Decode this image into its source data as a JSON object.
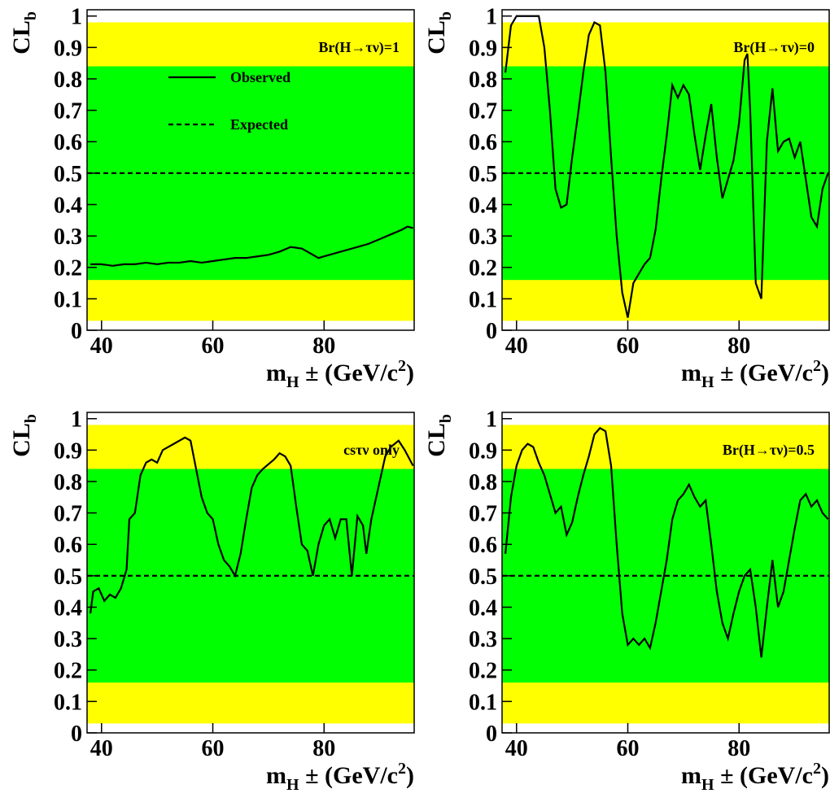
{
  "chart_data": [
    {
      "type": "line",
      "annotation": "Br(H→τν)=1",
      "ylabel": [
        "CL",
        "b"
      ],
      "xlabel": [
        "m",
        "H",
        " ± (GeV/c",
        "2",
        ")"
      ],
      "xlim": [
        37.4,
        96.2
      ],
      "ylim": [
        0,
        1.02
      ],
      "xticks": [
        40,
        60,
        80
      ],
      "yticks": [
        0,
        0.1,
        0.2,
        0.3,
        0.4,
        0.5,
        0.6,
        0.7,
        0.8,
        0.9,
        1
      ],
      "bands": [
        {
          "color": "#ffff00",
          "range": [
            0.03,
            0.98
          ]
        },
        {
          "color": "#00ff00",
          "range": [
            0.16,
            0.84
          ]
        }
      ],
      "legend": "upper left",
      "series": [
        {
          "name": "Observed",
          "color": "#000000",
          "dash": false,
          "x": [
            38,
            40,
            42,
            44,
            46,
            48,
            50,
            52,
            54,
            56,
            58,
            60,
            62,
            64,
            66,
            68,
            70,
            72,
            74,
            76,
            78,
            79,
            80,
            82,
            84,
            86,
            88,
            90,
            92,
            94,
            95,
            96
          ],
          "values": [
            0.21,
            0.21,
            0.205,
            0.21,
            0.21,
            0.215,
            0.21,
            0.215,
            0.215,
            0.22,
            0.215,
            0.22,
            0.225,
            0.23,
            0.23,
            0.235,
            0.24,
            0.25,
            0.265,
            0.26,
            0.24,
            0.23,
            0.235,
            0.245,
            0.255,
            0.265,
            0.275,
            0.29,
            0.305,
            0.32,
            0.33,
            0.325
          ]
        },
        {
          "name": "Expected",
          "color": "#000000",
          "dash": true,
          "x": [
            37.4,
            96.2
          ],
          "values": [
            0.5,
            0.5
          ]
        }
      ]
    },
    {
      "type": "line",
      "annotation": "Br(H→τν)=0",
      "ylabel": [
        "CL",
        "b"
      ],
      "xlabel": [
        "m",
        "H",
        " ± (GeV/c",
        "2",
        ")"
      ],
      "xlim": [
        37.4,
        96.2
      ],
      "ylim": [
        0,
        1.02
      ],
      "xticks": [
        40,
        60,
        80
      ],
      "yticks": [
        0,
        0.1,
        0.2,
        0.3,
        0.4,
        0.5,
        0.6,
        0.7,
        0.8,
        0.9,
        1
      ],
      "bands": [
        {
          "color": "#ffff00",
          "range": [
            0.03,
            0.98
          ]
        },
        {
          "color": "#00ff00",
          "range": [
            0.16,
            0.84
          ]
        }
      ],
      "series": [
        {
          "color": "#000000",
          "dash": false,
          "x": [
            38,
            39,
            40,
            42,
            44,
            45,
            46,
            47,
            48,
            49,
            50,
            51,
            52,
            53,
            54,
            55,
            56,
            57,
            58,
            59,
            60,
            61,
            62,
            63,
            64,
            65,
            66,
            67,
            68,
            69,
            70,
            71,
            72,
            73,
            74,
            75,
            76,
            77,
            78,
            79,
            80,
            81,
            81.5,
            82,
            83,
            84,
            85,
            86,
            87,
            88,
            89,
            90,
            91,
            92,
            93,
            94,
            95,
            96
          ],
          "values": [
            0.82,
            0.97,
            1.0,
            1.0,
            1.0,
            0.9,
            0.7,
            0.45,
            0.39,
            0.4,
            0.55,
            0.68,
            0.82,
            0.94,
            0.98,
            0.97,
            0.82,
            0.55,
            0.3,
            0.12,
            0.04,
            0.15,
            0.18,
            0.21,
            0.23,
            0.32,
            0.48,
            0.62,
            0.78,
            0.74,
            0.78,
            0.75,
            0.62,
            0.51,
            0.62,
            0.72,
            0.55,
            0.42,
            0.48,
            0.54,
            0.66,
            0.86,
            0.88,
            0.7,
            0.15,
            0.1,
            0.6,
            0.77,
            0.57,
            0.6,
            0.61,
            0.55,
            0.6,
            0.48,
            0.36,
            0.33,
            0.45,
            0.5
          ]
        },
        {
          "color": "#000000",
          "dash": true,
          "x": [
            37.4,
            96.2
          ],
          "values": [
            0.5,
            0.5
          ]
        }
      ]
    },
    {
      "type": "line",
      "annotation": "csτν only",
      "ylabel": [
        "CL",
        "b"
      ],
      "xlabel": [
        "m",
        "H",
        " ± (GeV/c",
        "2",
        ")"
      ],
      "xlim": [
        37.4,
        96.2
      ],
      "ylim": [
        0,
        1.02
      ],
      "xticks": [
        40,
        60,
        80
      ],
      "yticks": [
        0,
        0.1,
        0.2,
        0.3,
        0.4,
        0.5,
        0.6,
        0.7,
        0.8,
        0.9,
        1
      ],
      "bands": [
        {
          "color": "#ffff00",
          "range": [
            0.03,
            0.98
          ]
        },
        {
          "color": "#00ff00",
          "range": [
            0.16,
            0.84
          ]
        }
      ],
      "series": [
        {
          "color": "#000000",
          "dash": false,
          "x": [
            38,
            38.5,
            39.5,
            40.5,
            41.5,
            42.5,
            43.5,
            44.5,
            45,
            46,
            47,
            48,
            49,
            50,
            51,
            53,
            55,
            56,
            57,
            58,
            59,
            60,
            61,
            62,
            63,
            64,
            65,
            66,
            67,
            68,
            69,
            71,
            72,
            73,
            74,
            75,
            76,
            77,
            78,
            79,
            80,
            81,
            82,
            83,
            84,
            85,
            86,
            87,
            87.6,
            88.5,
            90,
            91,
            92,
            93.4,
            94.5,
            96
          ],
          "values": [
            0.38,
            0.45,
            0.46,
            0.42,
            0.44,
            0.43,
            0.46,
            0.52,
            0.68,
            0.7,
            0.82,
            0.86,
            0.87,
            0.86,
            0.9,
            0.92,
            0.94,
            0.93,
            0.84,
            0.75,
            0.7,
            0.68,
            0.6,
            0.55,
            0.53,
            0.5,
            0.57,
            0.68,
            0.78,
            0.82,
            0.84,
            0.87,
            0.89,
            0.88,
            0.85,
            0.72,
            0.6,
            0.58,
            0.5,
            0.6,
            0.66,
            0.68,
            0.62,
            0.68,
            0.68,
            0.5,
            0.69,
            0.66,
            0.57,
            0.68,
            0.8,
            0.88,
            0.91,
            0.93,
            0.9,
            0.85
          ]
        },
        {
          "color": "#000000",
          "dash": true,
          "x": [
            37.4,
            96.2
          ],
          "values": [
            0.5,
            0.5
          ]
        }
      ]
    },
    {
      "type": "line",
      "annotation": "Br(H→τν)=0.5",
      "ylabel": [
        "CL",
        "b"
      ],
      "xlabel": [
        "m",
        "H",
        " ± (GeV/c",
        "2",
        ")"
      ],
      "xlim": [
        37.4,
        96.2
      ],
      "ylim": [
        0,
        1.02
      ],
      "xticks": [
        40,
        60,
        80
      ],
      "yticks": [
        0,
        0.1,
        0.2,
        0.3,
        0.4,
        0.5,
        0.6,
        0.7,
        0.8,
        0.9,
        1
      ],
      "bands": [
        {
          "color": "#ffff00",
          "range": [
            0.03,
            0.98
          ]
        },
        {
          "color": "#00ff00",
          "range": [
            0.16,
            0.84
          ]
        }
      ],
      "series": [
        {
          "color": "#000000",
          "dash": false,
          "x": [
            38,
            39,
            40,
            41,
            42,
            43,
            44,
            45,
            46,
            47,
            48,
            49,
            50,
            51,
            52,
            53,
            54,
            55,
            56,
            57,
            58,
            59,
            60,
            61,
            62,
            63,
            64,
            65,
            66,
            67,
            68,
            69,
            70,
            71,
            72,
            73,
            74,
            75,
            76,
            77,
            78,
            79,
            80,
            81,
            82,
            83,
            84,
            85,
            86,
            87,
            88,
            89,
            90,
            91,
            92,
            93,
            94,
            95,
            96
          ],
          "values": [
            0.57,
            0.75,
            0.85,
            0.9,
            0.92,
            0.91,
            0.86,
            0.82,
            0.76,
            0.7,
            0.72,
            0.63,
            0.67,
            0.75,
            0.82,
            0.88,
            0.95,
            0.97,
            0.96,
            0.85,
            0.6,
            0.38,
            0.28,
            0.3,
            0.28,
            0.3,
            0.27,
            0.35,
            0.45,
            0.55,
            0.68,
            0.74,
            0.76,
            0.79,
            0.75,
            0.72,
            0.74,
            0.6,
            0.45,
            0.35,
            0.3,
            0.38,
            0.45,
            0.5,
            0.52,
            0.4,
            0.24,
            0.4,
            0.55,
            0.4,
            0.45,
            0.55,
            0.65,
            0.74,
            0.76,
            0.72,
            0.74,
            0.7,
            0.68
          ]
        },
        {
          "color": "#000000",
          "dash": true,
          "x": [
            37.4,
            96.2
          ],
          "values": [
            0.5,
            0.5
          ]
        }
      ]
    }
  ]
}
